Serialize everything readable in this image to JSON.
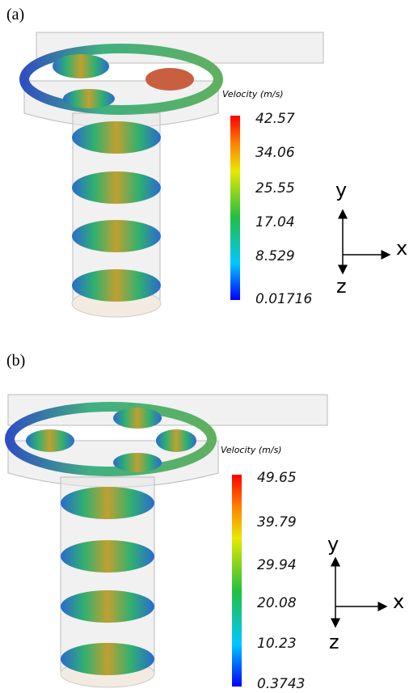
{
  "panels": [
    {
      "label": "(a)",
      "legend_title": "Velocity (m/s)",
      "legend_ticks": [
        "42.57",
        "34.06",
        "25.55",
        "17.04",
        "8.529",
        "0.01716"
      ],
      "axes": {
        "y": "y",
        "x": "x",
        "z": "z"
      }
    },
    {
      "label": "(b)",
      "legend_title": "Velocity (m/s)",
      "legend_ticks": [
        "49.65",
        "39.79",
        "29.94",
        "20.08",
        "10.23",
        "0.3743"
      ],
      "axes": {
        "y": "y",
        "x": "x",
        "z": "z"
      }
    }
  ]
}
